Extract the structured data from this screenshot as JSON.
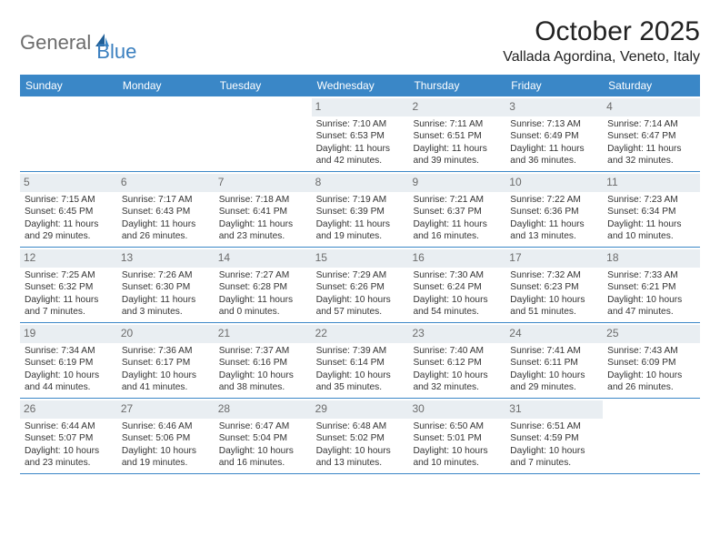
{
  "logo": {
    "text_general": "General",
    "text_blue": "Blue"
  },
  "title": "October 2025",
  "location": "Vallada Agordina, Veneto, Italy",
  "colors": {
    "header_bg": "#3a87c7",
    "header_text": "#ffffff",
    "daynum_bg": "#e9eef2",
    "daynum_text": "#6b6b6b",
    "border": "#3a87c7",
    "body_text": "#333333",
    "logo_gray": "#6c6c6c",
    "logo_blue": "#3a7fbf"
  },
  "day_headers": [
    "Sunday",
    "Monday",
    "Tuesday",
    "Wednesday",
    "Thursday",
    "Friday",
    "Saturday"
  ],
  "weeks": [
    [
      {
        "n": "",
        "empty": true
      },
      {
        "n": "",
        "empty": true
      },
      {
        "n": "",
        "empty": true
      },
      {
        "n": "1",
        "sr": "7:10 AM",
        "ss": "6:53 PM",
        "dl": "11 hours and 42 minutes."
      },
      {
        "n": "2",
        "sr": "7:11 AM",
        "ss": "6:51 PM",
        "dl": "11 hours and 39 minutes."
      },
      {
        "n": "3",
        "sr": "7:13 AM",
        "ss": "6:49 PM",
        "dl": "11 hours and 36 minutes."
      },
      {
        "n": "4",
        "sr": "7:14 AM",
        "ss": "6:47 PM",
        "dl": "11 hours and 32 minutes."
      }
    ],
    [
      {
        "n": "5",
        "sr": "7:15 AM",
        "ss": "6:45 PM",
        "dl": "11 hours and 29 minutes."
      },
      {
        "n": "6",
        "sr": "7:17 AM",
        "ss": "6:43 PM",
        "dl": "11 hours and 26 minutes."
      },
      {
        "n": "7",
        "sr": "7:18 AM",
        "ss": "6:41 PM",
        "dl": "11 hours and 23 minutes."
      },
      {
        "n": "8",
        "sr": "7:19 AM",
        "ss": "6:39 PM",
        "dl": "11 hours and 19 minutes."
      },
      {
        "n": "9",
        "sr": "7:21 AM",
        "ss": "6:37 PM",
        "dl": "11 hours and 16 minutes."
      },
      {
        "n": "10",
        "sr": "7:22 AM",
        "ss": "6:36 PM",
        "dl": "11 hours and 13 minutes."
      },
      {
        "n": "11",
        "sr": "7:23 AM",
        "ss": "6:34 PM",
        "dl": "11 hours and 10 minutes."
      }
    ],
    [
      {
        "n": "12",
        "sr": "7:25 AM",
        "ss": "6:32 PM",
        "dl": "11 hours and 7 minutes."
      },
      {
        "n": "13",
        "sr": "7:26 AM",
        "ss": "6:30 PM",
        "dl": "11 hours and 3 minutes."
      },
      {
        "n": "14",
        "sr": "7:27 AM",
        "ss": "6:28 PM",
        "dl": "11 hours and 0 minutes."
      },
      {
        "n": "15",
        "sr": "7:29 AM",
        "ss": "6:26 PM",
        "dl": "10 hours and 57 minutes."
      },
      {
        "n": "16",
        "sr": "7:30 AM",
        "ss": "6:24 PM",
        "dl": "10 hours and 54 minutes."
      },
      {
        "n": "17",
        "sr": "7:32 AM",
        "ss": "6:23 PM",
        "dl": "10 hours and 51 minutes."
      },
      {
        "n": "18",
        "sr": "7:33 AM",
        "ss": "6:21 PM",
        "dl": "10 hours and 47 minutes."
      }
    ],
    [
      {
        "n": "19",
        "sr": "7:34 AM",
        "ss": "6:19 PM",
        "dl": "10 hours and 44 minutes."
      },
      {
        "n": "20",
        "sr": "7:36 AM",
        "ss": "6:17 PM",
        "dl": "10 hours and 41 minutes."
      },
      {
        "n": "21",
        "sr": "7:37 AM",
        "ss": "6:16 PM",
        "dl": "10 hours and 38 minutes."
      },
      {
        "n": "22",
        "sr": "7:39 AM",
        "ss": "6:14 PM",
        "dl": "10 hours and 35 minutes."
      },
      {
        "n": "23",
        "sr": "7:40 AM",
        "ss": "6:12 PM",
        "dl": "10 hours and 32 minutes."
      },
      {
        "n": "24",
        "sr": "7:41 AM",
        "ss": "6:11 PM",
        "dl": "10 hours and 29 minutes."
      },
      {
        "n": "25",
        "sr": "7:43 AM",
        "ss": "6:09 PM",
        "dl": "10 hours and 26 minutes."
      }
    ],
    [
      {
        "n": "26",
        "sr": "6:44 AM",
        "ss": "5:07 PM",
        "dl": "10 hours and 23 minutes."
      },
      {
        "n": "27",
        "sr": "6:46 AM",
        "ss": "5:06 PM",
        "dl": "10 hours and 19 minutes."
      },
      {
        "n": "28",
        "sr": "6:47 AM",
        "ss": "5:04 PM",
        "dl": "10 hours and 16 minutes."
      },
      {
        "n": "29",
        "sr": "6:48 AM",
        "ss": "5:02 PM",
        "dl": "10 hours and 13 minutes."
      },
      {
        "n": "30",
        "sr": "6:50 AM",
        "ss": "5:01 PM",
        "dl": "10 hours and 10 minutes."
      },
      {
        "n": "31",
        "sr": "6:51 AM",
        "ss": "4:59 PM",
        "dl": "10 hours and 7 minutes."
      },
      {
        "n": "",
        "empty": true
      }
    ]
  ],
  "labels": {
    "sunrise": "Sunrise:",
    "sunset": "Sunset:",
    "daylight": "Daylight:"
  }
}
